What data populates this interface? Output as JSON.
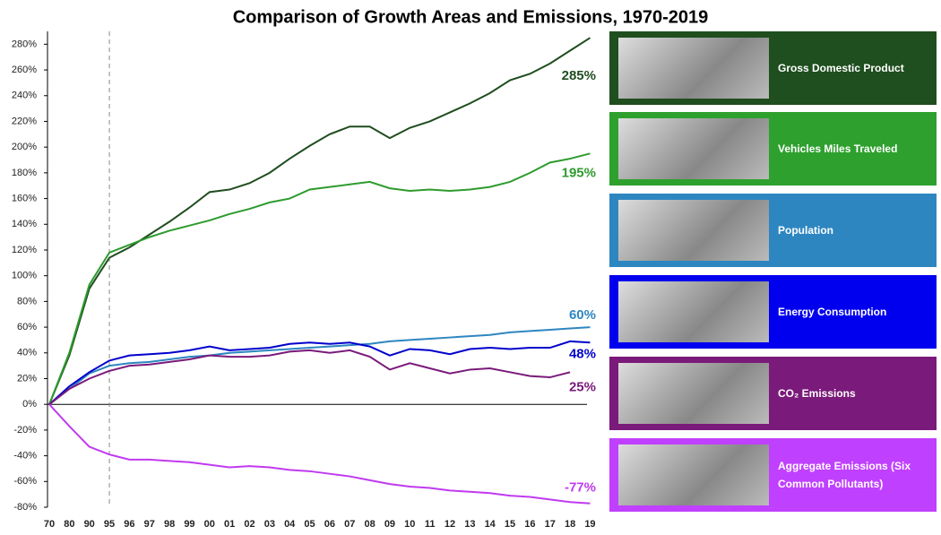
{
  "chart_data": {
    "type": "line",
    "title": "Comparison of Growth Areas and Emissions, 1970-2019",
    "categories": [
      "70",
      "80",
      "90",
      "95",
      "96",
      "97",
      "98",
      "99",
      "00",
      "01",
      "02",
      "03",
      "04",
      "05",
      "06",
      "07",
      "08",
      "09",
      "10",
      "11",
      "12",
      "13",
      "14",
      "15",
      "16",
      "17",
      "18",
      "19"
    ],
    "series": [
      {
        "name": "Gross Domestic Product",
        "color": "#1f4d1f",
        "values": [
          0,
          38,
          90,
          114,
          122,
          132,
          142,
          153,
          165,
          167,
          172,
          180,
          191,
          201,
          210,
          216,
          216,
          207,
          215,
          220,
          227,
          234,
          242,
          252,
          257,
          265,
          275,
          285
        ],
        "value_labels": [
          null,
          null,
          null,
          null,
          null,
          null,
          null,
          null,
          null,
          null,
          null,
          null,
          null,
          null,
          null,
          null,
          null,
          null,
          null,
          null,
          null,
          null,
          null,
          null,
          null,
          null,
          null,
          "285%"
        ]
      },
      {
        "name": "Vehicles Miles Traveled",
        "color": "#2e9b2e",
        "values": [
          0,
          40,
          93,
          118,
          124,
          130,
          135,
          139,
          143,
          148,
          152,
          157,
          160,
          167,
          169,
          171,
          173,
          168,
          166,
          167,
          166,
          167,
          169,
          173,
          180,
          188,
          191,
          195
        ],
        "value_labels": [
          null,
          null,
          null,
          null,
          null,
          null,
          null,
          null,
          null,
          null,
          null,
          null,
          null,
          null,
          null,
          null,
          null,
          null,
          null,
          null,
          null,
          null,
          null,
          null,
          null,
          null,
          null,
          "195%"
        ]
      },
      {
        "name": "Population",
        "color": "#2e86c1",
        "values": [
          0,
          12,
          24,
          30,
          32,
          33,
          35,
          37,
          38,
          40,
          41,
          42,
          43,
          44,
          45,
          46,
          47,
          49,
          50,
          51,
          52,
          53,
          54,
          56,
          57,
          58,
          59,
          60
        ],
        "value_labels": [
          null,
          null,
          null,
          null,
          null,
          null,
          null,
          null,
          null,
          null,
          null,
          null,
          null,
          null,
          null,
          null,
          null,
          null,
          null,
          null,
          null,
          null,
          null,
          null,
          null,
          null,
          null,
          "60%"
        ]
      },
      {
        "name": "Energy Consumption",
        "color": "#0000cc",
        "values": [
          0,
          14,
          25,
          34,
          38,
          39,
          40,
          42,
          45,
          42,
          43,
          44,
          47,
          48,
          47,
          48,
          45,
          38,
          43,
          42,
          39,
          43,
          44,
          43,
          44,
          44,
          49,
          48
        ],
        "value_labels": [
          null,
          null,
          null,
          null,
          null,
          null,
          null,
          null,
          null,
          null,
          null,
          null,
          null,
          null,
          null,
          null,
          null,
          null,
          null,
          null,
          null,
          null,
          null,
          null,
          null,
          null,
          null,
          "48%"
        ]
      },
      {
        "name": "CO₂ Emissions",
        "color": "#7a1a7a",
        "values": [
          0,
          12,
          20,
          26,
          30,
          31,
          33,
          35,
          38,
          37,
          37,
          38,
          41,
          42,
          40,
          42,
          37,
          27,
          32,
          28,
          24,
          27,
          28,
          25,
          22,
          21,
          25,
          null
        ],
        "value_labels": [
          null,
          null,
          null,
          null,
          null,
          null,
          null,
          null,
          null,
          null,
          null,
          null,
          null,
          null,
          null,
          null,
          null,
          null,
          null,
          null,
          null,
          null,
          null,
          null,
          null,
          null,
          "25%",
          null
        ]
      },
      {
        "name": "Aggregate Emissions (Six Common Pollutants)",
        "color": "#c03af0",
        "values": [
          0,
          -17,
          -33,
          -39,
          -43,
          -43,
          -44,
          -45,
          -47,
          -49,
          -48,
          -49,
          -51,
          -52,
          -54,
          -56,
          -59,
          -62,
          -64,
          -65,
          -67,
          -68,
          -69,
          -71,
          -72,
          -74,
          -76,
          -77
        ],
        "value_labels": [
          null,
          null,
          null,
          null,
          null,
          null,
          null,
          null,
          null,
          null,
          null,
          null,
          null,
          null,
          null,
          null,
          null,
          null,
          null,
          null,
          null,
          null,
          null,
          null,
          null,
          null,
          null,
          "-77%"
        ]
      }
    ],
    "ylim": [
      -80,
      290
    ],
    "yticks": [
      {
        "value": -80,
        "label": "-80%"
      },
      {
        "value": -60,
        "label": "-60%"
      },
      {
        "value": -40,
        "label": "-40%"
      },
      {
        "value": -20,
        "label": "-20%"
      },
      {
        "value": 0,
        "label": "0%"
      },
      {
        "value": 20,
        "label": "20%"
      },
      {
        "value": 40,
        "label": "40%"
      },
      {
        "value": 60,
        "label": "60%"
      },
      {
        "value": 80,
        "label": "80%"
      },
      {
        "value": 100,
        "label": "100%"
      },
      {
        "value": 120,
        "label": "120%"
      },
      {
        "value": 140,
        "label": "140%"
      },
      {
        "value": 160,
        "label": "160%"
      },
      {
        "value": 180,
        "label": "180%"
      },
      {
        "value": 200,
        "label": "200%"
      },
      {
        "value": 220,
        "label": "220%"
      },
      {
        "value": 240,
        "label": "240%"
      },
      {
        "value": 260,
        "label": "260%"
      },
      {
        "value": 280,
        "label": "280%"
      }
    ],
    "legend_colors": [
      "#1f4e1f",
      "#2ea02e",
      "#2e86c1",
      "#0000ee",
      "#7a1a7a",
      "#c040ff"
    ]
  }
}
